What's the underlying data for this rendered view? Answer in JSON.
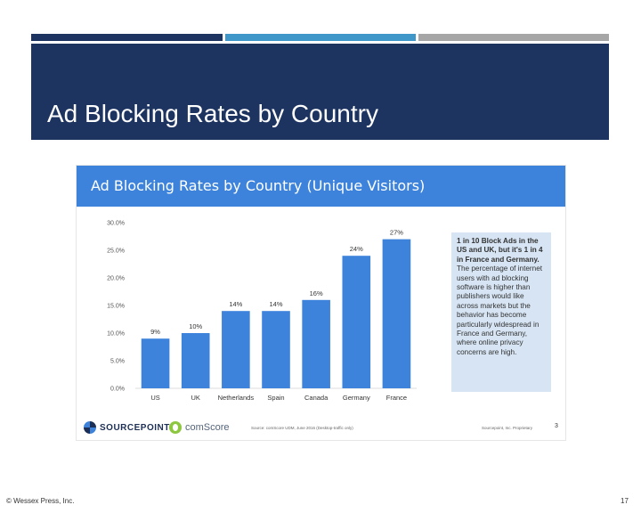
{
  "slide": {
    "title": "Ad Blocking Rates by Country",
    "footer_left": "© Wessex Press, Inc.",
    "page_number": "17",
    "accent_colors": [
      "#1d3461",
      "#3f97c9",
      "#a6a6a6"
    ]
  },
  "embed": {
    "header_title": "Ad Blocking Rates by Country (Unique Visitors)",
    "header_color": "#3d83db",
    "callout": {
      "bold_text": "1 in 10 Block Ads in the US and UK, but it's 1 in 4 in France and Germany.",
      "body_text": "The percentage of internet users with ad blocking software is higher than publishers would like across markets but the behavior has become particularly widespread in France and Germany, where online privacy concerns are high."
    },
    "footer": {
      "logo_sourcepoint": "SOURCEPOINT",
      "logo_comscore": "comScore",
      "source_note": "Source: comScore UDM, June 2016 (Desktop-traffic only)",
      "proprietary": "Sourcepoint, Inc. Proprietary",
      "page": "3"
    }
  },
  "chart_data": {
    "type": "bar",
    "title": "Ad Blocking Rates by Country (Unique Visitors)",
    "categories": [
      "US",
      "UK",
      "Netherlands",
      "Spain",
      "Canada",
      "Germany",
      "France"
    ],
    "values": [
      9,
      10,
      14,
      14,
      16,
      24,
      27
    ],
    "data_labels": [
      "9%",
      "10%",
      "14%",
      "14%",
      "16%",
      "24%",
      "27%"
    ],
    "y_ticks": [
      "0.0%",
      "5.0%",
      "10.0%",
      "15.0%",
      "20.0%",
      "25.0%",
      "30.0%"
    ],
    "ylim": [
      0,
      30
    ],
    "xlabel": "",
    "ylabel": "",
    "bar_color": "#3d83db",
    "grid": false,
    "legend": "none"
  }
}
